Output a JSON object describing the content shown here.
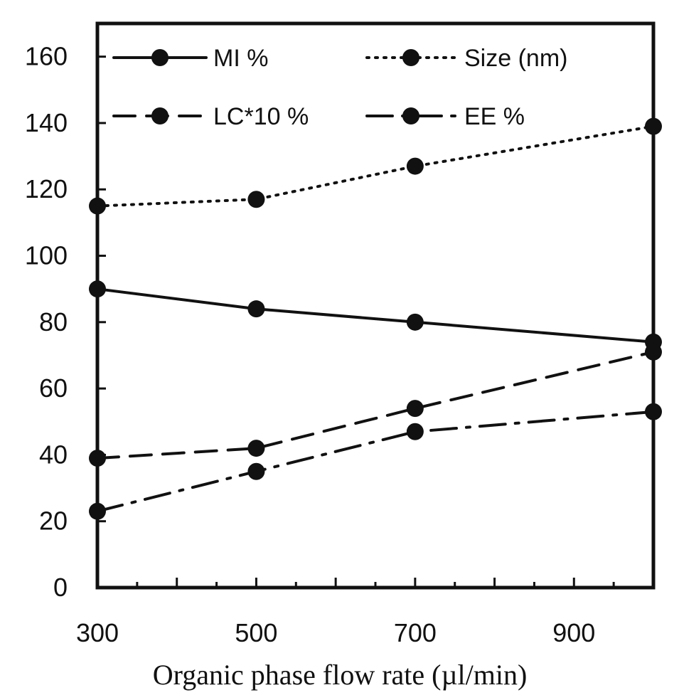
{
  "chart_data": {
    "type": "line",
    "title": "",
    "xlabel": "Organic phase flow rate (µl/min)",
    "ylabel": "",
    "x": [
      300,
      500,
      700,
      1000
    ],
    "xlim": [
      300,
      1000
    ],
    "ylim": [
      0,
      170
    ],
    "xticks": [
      300,
      500,
      700,
      900
    ],
    "xtick_labels": [
      "300",
      "500",
      "700",
      "900"
    ],
    "yticks": [
      0,
      20,
      40,
      60,
      80,
      100,
      120,
      140,
      160
    ],
    "ytick_labels": [
      "0",
      "20",
      "40",
      "60",
      "80",
      "100",
      "120",
      "140",
      "160"
    ],
    "grid": false,
    "legend_position": "top",
    "series": [
      {
        "name": "MI  %",
        "values": [
          90,
          84,
          80,
          74
        ],
        "line_style": "solid",
        "color": "#111111"
      },
      {
        "name": "Size (nm)",
        "values": [
          115,
          117,
          127,
          139
        ],
        "line_style": "dotted",
        "color": "#111111"
      },
      {
        "name": "LC*10  %",
        "values": [
          39,
          42,
          54,
          71
        ],
        "line_style": "dashed",
        "color": "#111111"
      },
      {
        "name": "EE %",
        "values": [
          23,
          35,
          47,
          53
        ],
        "line_style": "dash-dot",
        "color": "#111111"
      }
    ]
  }
}
